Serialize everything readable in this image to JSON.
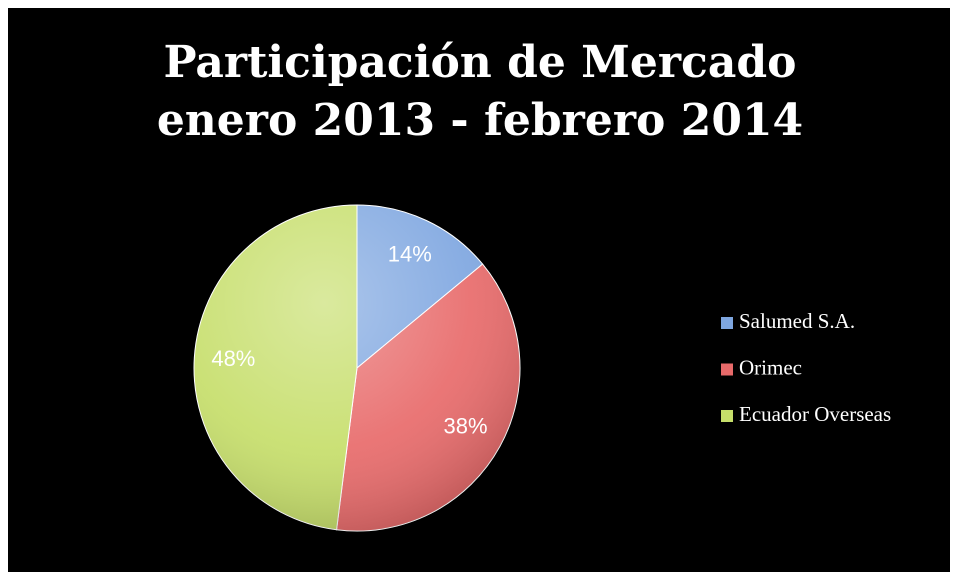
{
  "chart_data": {
    "type": "pie",
    "title": "Participación de Mercado enero 2013 - febrero 2014",
    "categories": [
      "Salumed S.A.",
      "Orimec",
      "Ecuador Overseas"
    ],
    "values": [
      14,
      38,
      48
    ],
    "value_labels": [
      "14%",
      "38%",
      "48%"
    ],
    "colors": [
      "#7ea6e0",
      "#e86a6a",
      "#c6de6a"
    ],
    "legend": "right"
  }
}
